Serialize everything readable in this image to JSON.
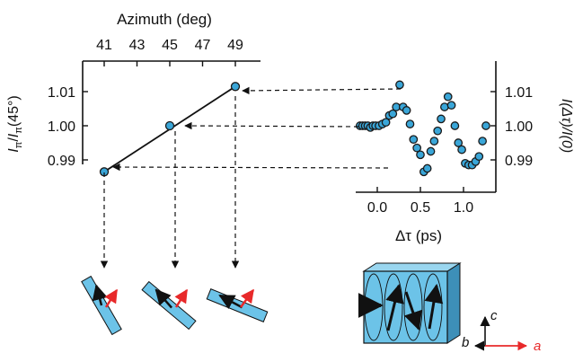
{
  "left_panel": {
    "x_axis_title": "Azimuth (deg)",
    "x_ticks": [
      "41",
      "43",
      "45",
      "47",
      "49"
    ],
    "y_ticks": [
      "1.01",
      "1.00",
      "0.99"
    ],
    "y_label_main": "I",
    "y_label_sub": "π",
    "y_label_slash": "/",
    "y_label_main2": "I",
    "y_label_sub2": "π",
    "y_label_tail": "(45°)"
  },
  "right_panel": {
    "x_axis_title": "Δτ (ps)",
    "x_ticks": [
      "0.0",
      "0.5",
      "1.0"
    ],
    "y_ticks": [
      "1.01",
      "1.00",
      "0.99"
    ],
    "y_axis_title": "I(Δτ)/I(0)"
  },
  "crystal_axes": {
    "c_label": "c",
    "b_label": "b",
    "a_label": "a"
  },
  "colors": {
    "marker_fill": "#3aa6d8",
    "marker_stroke": "#1a1a1a",
    "rod_fill": "#6cc3e8",
    "red_arrow": "#e8292a",
    "axis": "#111111"
  },
  "chart_data": [
    {
      "type": "line",
      "title": "",
      "xlabel": "Azimuth (deg)",
      "ylabel": "Iπ/Iπ(45°)",
      "xlim": [
        40,
        50
      ],
      "ylim": [
        0.982,
        1.018
      ],
      "fit_line": {
        "x": [
          41,
          49
        ],
        "y": [
          0.9865,
          1.0115
        ]
      },
      "series": [
        {
          "x": [
            41,
            45,
            49
          ],
          "y": [
            0.9865,
            1.0,
            1.0115
          ]
        }
      ]
    },
    {
      "type": "scatter",
      "title": "",
      "xlabel": "Δτ (ps)",
      "ylabel": "I(Δτ)/I(0)",
      "xlim": [
        -0.3,
        1.3
      ],
      "ylim": [
        0.982,
        1.018
      ],
      "series": [
        {
          "x": [
            -0.2,
            -0.17,
            -0.14,
            -0.11,
            -0.08,
            -0.05,
            -0.02,
            0.02,
            0.06,
            0.1,
            0.14,
            0.18,
            0.22,
            0.26,
            0.3,
            0.34,
            0.38,
            0.42,
            0.46,
            0.5,
            0.54,
            0.58,
            0.62,
            0.66,
            0.7,
            0.74,
            0.78,
            0.82,
            0.86,
            0.9,
            0.94,
            0.98,
            1.02,
            1.06,
            1.1,
            1.14,
            1.18,
            1.22,
            1.26
          ],
          "y": [
            1.0,
            1.0,
            1.0,
            1.0,
            0.9995,
            1.0,
            1.0,
            1.0,
            1.0005,
            1.001,
            1.003,
            1.0035,
            1.0055,
            1.012,
            1.0055,
            1.0045,
            1.0005,
            0.996,
            0.9935,
            0.9915,
            0.9865,
            0.9875,
            0.9925,
            0.9955,
            0.9985,
            1.002,
            1.0055,
            1.0085,
            1.006,
            1.0,
            0.995,
            0.993,
            0.989,
            0.9885,
            0.9885,
            0.9895,
            0.991,
            0.9955,
            1.0
          ]
        }
      ]
    }
  ]
}
